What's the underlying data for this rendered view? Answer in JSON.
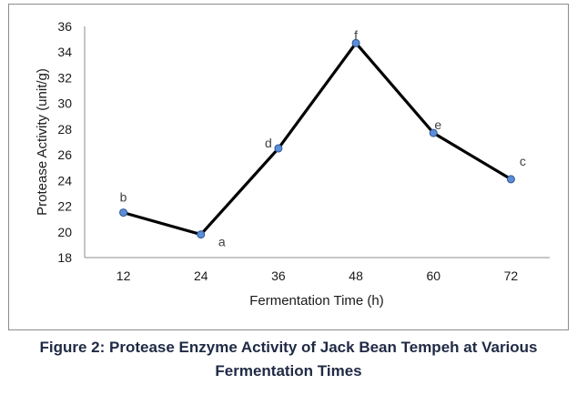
{
  "chart_data": {
    "type": "line",
    "x": [
      12,
      24,
      36,
      48,
      60,
      72
    ],
    "categories": [
      "12",
      "24",
      "36",
      "48",
      "60",
      "72"
    ],
    "series": [
      {
        "values": [
          21.5,
          19.8,
          26.5,
          34.7,
          27.7,
          24.1
        ],
        "labels": [
          "b",
          "a",
          "d",
          "f",
          "e",
          "c"
        ],
        "line_color": "#000000",
        "marker_color": "#5b8ed6",
        "marker_edge_color": "#2f5597"
      }
    ],
    "xlabel": "Fermentation Time (h)",
    "ylabel": "Protease Activity (unit/g)",
    "ylim": [
      18,
      36
    ],
    "yticks": [
      "18",
      "20",
      "22",
      "24",
      "26",
      "28",
      "30",
      "32",
      "34",
      "36"
    ],
    "grid": false,
    "legend": "none"
  },
  "caption": "Figure 2: Protease Enzyme Activity of Jack Bean Tempeh at Various Fermentation Times"
}
